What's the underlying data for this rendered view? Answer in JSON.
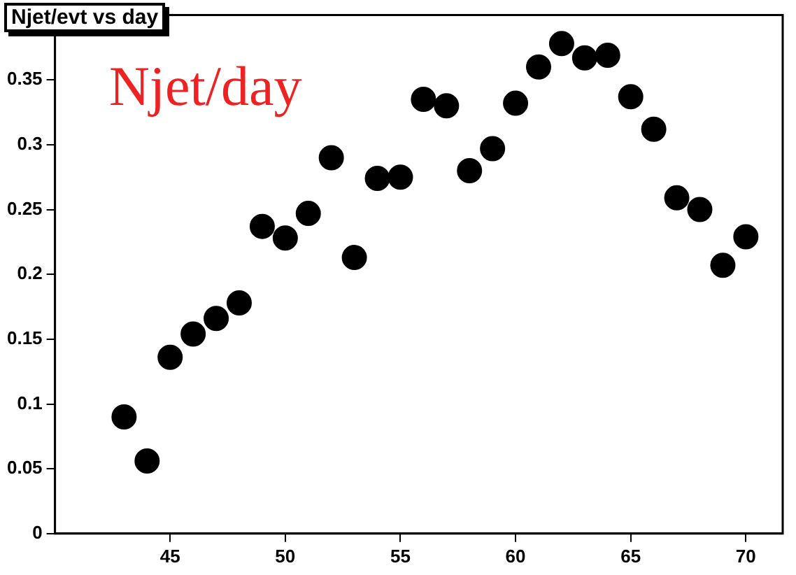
{
  "chart_data": {
    "type": "scatter",
    "title": "Njet/evt vs day",
    "annotations": [
      "Njet/day"
    ],
    "x": [
      43,
      44,
      45,
      46,
      47,
      48,
      49,
      50,
      51,
      52,
      53,
      54,
      55,
      56,
      57,
      58,
      59,
      60,
      61,
      62,
      63,
      64,
      65,
      66,
      67,
      68,
      69,
      70
    ],
    "series": [
      {
        "color": "#000000",
        "values": [
          0.09,
          0.056,
          0.136,
          0.154,
          0.166,
          0.178,
          0.237,
          0.228,
          0.247,
          0.29,
          0.213,
          0.274,
          0.275,
          0.335,
          0.33,
          0.28,
          0.297,
          0.332,
          0.36,
          0.378,
          0.367,
          0.369,
          0.337,
          0.312,
          0.259,
          0.25,
          0.207,
          0.229
        ]
      }
    ],
    "xlim": [
      40,
      71.6
    ],
    "xticks": [
      45,
      50,
      55,
      60,
      65,
      70
    ],
    "ylim": [
      0,
      0.4
    ],
    "yticks": [
      0,
      0.05,
      0.1,
      0.15,
      0.2,
      0.25,
      0.3,
      0.35
    ],
    "grid": false,
    "legend": false,
    "marker": "circle"
  }
}
